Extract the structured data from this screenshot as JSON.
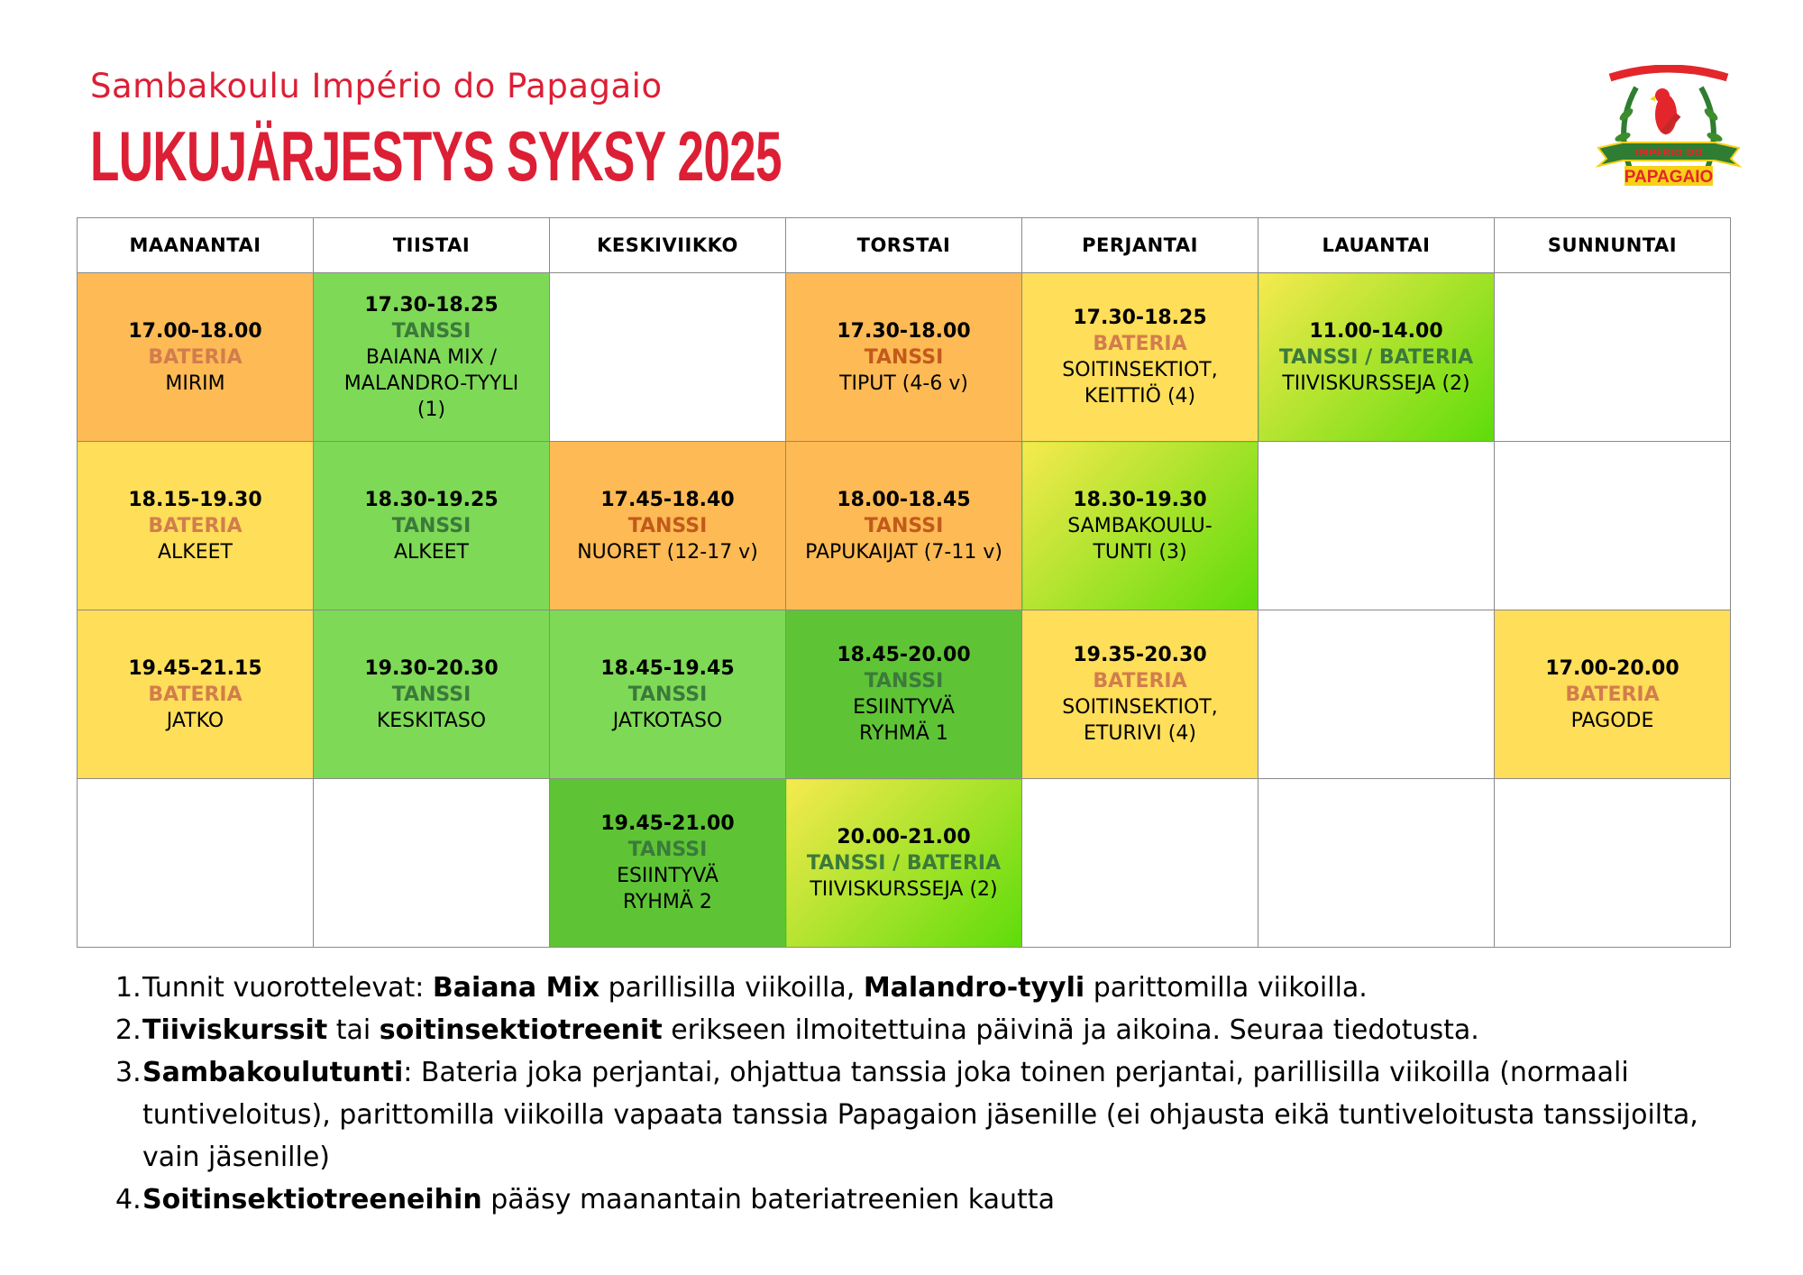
{
  "header": {
    "subtitle": "Sambakoulu Império do Papagaio",
    "title": "LUKUJÄRJESTYS SYKSY 2025",
    "logo_text": [
      "ESCOLA DE SAMBA",
      "G.R.",
      "E.S.",
      "IMPÉRIO DO",
      "PAPAGAIO"
    ]
  },
  "colors": {
    "brand_red": "#DC1F35",
    "orange": "#FDBA55",
    "yellow": "#FFDE59",
    "green": "#7ED957",
    "dark_green": "#5EC436",
    "gradient": [
      "#F6EA4E",
      "#5EDC0A"
    ],
    "bateria_text": "#D27D4D",
    "tanssi_green_text": "#3B7A3B",
    "tanssi_orange_text": "#C25A1B"
  },
  "days": [
    "MAANANTAI",
    "TIISTAI",
    "KESKIVIIKKO",
    "TORSTAI",
    "PERJANTAI",
    "LAUANTAI",
    "SUNNUNTAI"
  ],
  "rows": [
    [
      {
        "time": "17.00-18.00",
        "category": "BATERIA",
        "cat_color": "#D27D4D",
        "bg": "orange",
        "lines": [
          "MIRIM"
        ]
      },
      {
        "time": "17.30-18.25",
        "category": "TANSSI",
        "cat_color": "#3B7A3B",
        "bg": "green",
        "lines": [
          "BAIANA MIX /",
          "MALANDRO-TYYLI",
          "(1)"
        ]
      },
      null,
      {
        "time": "17.30-18.00",
        "category": "TANSSI",
        "cat_color": "#C25A1B",
        "bg": "orange",
        "lines": [
          "TIPUT (4-6 v)"
        ]
      },
      {
        "time": "17.30-18.25",
        "category": "BATERIA",
        "cat_color": "#D27D4D",
        "bg": "yellow",
        "lines": [
          "SOITINSEKTIOT,",
          "KEITTIÖ (4)"
        ]
      },
      {
        "time": "11.00-14.00",
        "category": "TANSSI / BATERIA",
        "cat_color": "#3B7A3B",
        "bg": "gradient",
        "lines": [
          "TIIVISKURSSEJA (2)"
        ]
      },
      null
    ],
    [
      {
        "time": "18.15-19.30",
        "category": "BATERIA",
        "cat_color": "#D27D4D",
        "bg": "yellow",
        "lines": [
          "ALKEET"
        ]
      },
      {
        "time": "18.30-19.25",
        "category": "TANSSI",
        "cat_color": "#3B7A3B",
        "bg": "green",
        "lines": [
          "ALKEET"
        ]
      },
      {
        "time": "17.45-18.40",
        "category": "TANSSI",
        "cat_color": "#C25A1B",
        "bg": "orange",
        "lines": [
          "NUORET (12-17 v)"
        ]
      },
      {
        "time": "18.00-18.45",
        "category": "TANSSI",
        "cat_color": "#C25A1B",
        "bg": "orange",
        "lines": [
          "PAPUKAIJAT (7-11 v)"
        ]
      },
      {
        "time": "18.30-19.30",
        "category": "",
        "cat_color": "#3B7A3B",
        "bg": "gradient",
        "lines": [
          "SAMBAKOULU-",
          "TUNTI (3)"
        ]
      },
      null,
      null
    ],
    [
      {
        "time": "19.45-21.15",
        "category": "BATERIA",
        "cat_color": "#D27D4D",
        "bg": "yellow",
        "lines": [
          "JATKO"
        ]
      },
      {
        "time": "19.30-20.30",
        "category": "TANSSI",
        "cat_color": "#3B7A3B",
        "bg": "green",
        "lines": [
          "KESKITASO"
        ]
      },
      {
        "time": "18.45-19.45",
        "category": "TANSSI",
        "cat_color": "#3B7A3B",
        "bg": "green",
        "lines": [
          "JATKOTASO"
        ]
      },
      {
        "time": "18.45-20.00",
        "category": "TANSSI",
        "cat_color": "#3B7A3B",
        "bg": "dark_green",
        "lines": [
          "ESIINTYVÄ",
          "RYHMÄ 1"
        ]
      },
      {
        "time": "19.35-20.30",
        "category": "BATERIA",
        "cat_color": "#D27D4D",
        "bg": "yellow",
        "lines": [
          "SOITINSEKTIOT,",
          "ETURIVI (4)"
        ]
      },
      null,
      {
        "time": "17.00-20.00",
        "category": "BATERIA",
        "cat_color": "#D27D4D",
        "bg": "yellow",
        "lines": [
          "PAGODE"
        ]
      }
    ],
    [
      null,
      null,
      {
        "time": "19.45-21.00",
        "category": "TANSSI",
        "cat_color": "#3B7A3B",
        "bg": "dark_green",
        "lines": [
          "ESIINTYVÄ",
          "RYHMÄ 2"
        ]
      },
      {
        "time": "20.00-21.00",
        "category": "TANSSI / BATERIA",
        "cat_color": "#3B7A3B",
        "bg": "gradient",
        "lines": [
          "TIIVISKURSSEJA (2)"
        ]
      },
      null,
      null,
      null
    ]
  ],
  "notes": [
    {
      "num": "1.",
      "parts": [
        {
          "t": "Tunnit vuorottelevat: ",
          "b": false
        },
        {
          "t": "Baiana Mix",
          "b": true
        },
        {
          "t": " parillisilla viikoilla, ",
          "b": false
        },
        {
          "t": "Malandro-tyyli",
          "b": true
        },
        {
          "t": " parittomilla viikoilla.",
          "b": false
        }
      ]
    },
    {
      "num": "2.",
      "parts": [
        {
          "t": "Tiiviskurssit",
          "b": true
        },
        {
          "t": " tai ",
          "b": false
        },
        {
          "t": "soitinsektiotreenit",
          "b": true
        },
        {
          "t": " erikseen ilmoitettuina päivinä ja aikoina. Seuraa tiedotusta.",
          "b": false
        }
      ]
    },
    {
      "num": "3.",
      "parts": [
        {
          "t": "Sambakoulutunti",
          "b": true
        },
        {
          "t": ": Bateria joka perjantai, ohjattua tanssia joka toinen perjantai, parillisilla viikoilla (normaali tuntiveloitus), parittomilla viikoilla vapaata tanssia Papagaion jäsenille (ei ohjausta eikä tuntiveloitusta tanssijoilta, vain jäsenille)",
          "b": false
        }
      ]
    },
    {
      "num": "4.",
      "parts": [
        {
          "t": "Soitinsektiotreeneihin",
          "b": true
        },
        {
          "t": " pääsy maanantain bateriatreenien kautta",
          "b": false
        }
      ]
    }
  ]
}
